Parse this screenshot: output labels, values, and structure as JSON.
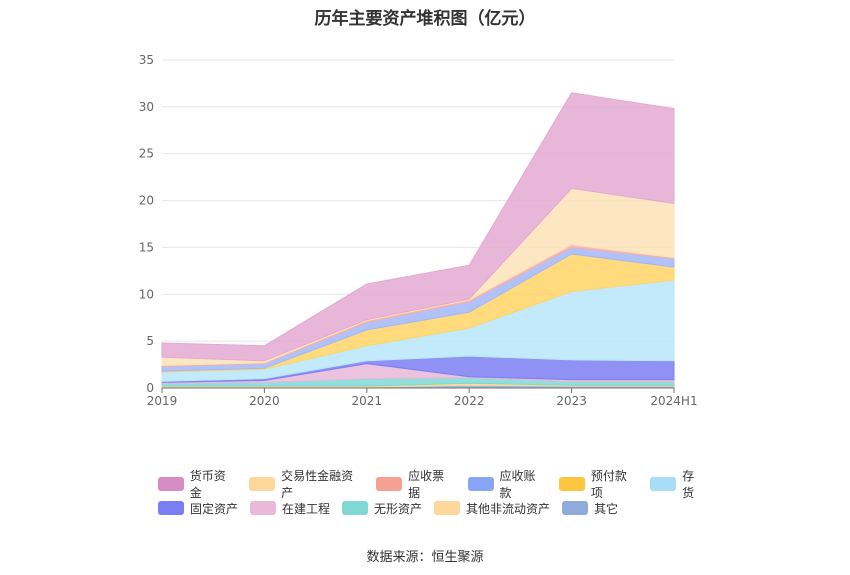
{
  "title": "历年主要资产堆积图（亿元）",
  "source": "数据来源：恒生聚源",
  "chart_data": {
    "type": "area",
    "stacked": true,
    "categories": [
      "2019",
      "2020",
      "2021",
      "2022",
      "2023",
      "2024H1"
    ],
    "ylim": [
      0,
      35
    ],
    "yticks": [
      0,
      5,
      10,
      15,
      20,
      25,
      30,
      35
    ],
    "grid": true,
    "legend_position": "bottom",
    "series": [
      {
        "name": "其它",
        "color": "#8faadc",
        "values": [
          0.1,
          0.1,
          0.1,
          0.3,
          0.2,
          0.2
        ]
      },
      {
        "name": "其他非流动资产",
        "color": "#ffd98f",
        "values": [
          0.1,
          0.1,
          0.1,
          0.2,
          0.1,
          0.1
        ]
      },
      {
        "name": "无形资产",
        "color": "#7fd8d4",
        "values": [
          0.3,
          0.4,
          0.8,
          0.6,
          0.4,
          0.4
        ]
      },
      {
        "name": "在建工程",
        "color": "#e8b9d9",
        "values": [
          0.1,
          0.2,
          1.6,
          0.1,
          0.2,
          0.2
        ]
      },
      {
        "name": "固定资产",
        "color": "#7b7ef2",
        "values": [
          0.1,
          0.2,
          0.3,
          2.2,
          2.1,
          2.0
        ]
      },
      {
        "name": "存货",
        "color": "#b8e6fa",
        "values": [
          1.0,
          1.0,
          1.6,
          3.0,
          7.3,
          8.6
        ]
      },
      {
        "name": "预付款项",
        "color": "#ffd566",
        "values": [
          0.1,
          0.1,
          1.7,
          1.7,
          4.0,
          1.4
        ]
      },
      {
        "name": "应收账款",
        "color": "#a3b7fa",
        "values": [
          0.5,
          0.5,
          0.8,
          1.1,
          0.7,
          0.9
        ]
      },
      {
        "name": "应收票据",
        "color": "#f6b0a6",
        "values": [
          0.1,
          0.1,
          0.2,
          0.2,
          0.3,
          0.1
        ]
      },
      {
        "name": "交易性金融资产",
        "color": "#fde3b8",
        "values": [
          0.9,
          0.2,
          0.1,
          0.1,
          6.0,
          5.8
        ]
      },
      {
        "name": "货币资金",
        "color": "#e4a9d2",
        "values": [
          1.5,
          1.6,
          3.8,
          3.6,
          10.2,
          10.1
        ]
      }
    ]
  },
  "legend": {
    "row1": [
      {
        "label": "货币资金",
        "color": "#d58cc2"
      },
      {
        "label": "交易性金融资产",
        "color": "#fdd89a"
      },
      {
        "label": "应收票据",
        "color": "#f4a093"
      },
      {
        "label": "应收账款",
        "color": "#8aa4f6"
      },
      {
        "label": "预付款项",
        "color": "#fdc540"
      },
      {
        "label": "存货",
        "color": "#a8ddf7"
      }
    ],
    "row2": [
      {
        "label": "固定资产",
        "color": "#7b7ef2"
      },
      {
        "label": "在建工程",
        "color": "#e8b9d9"
      },
      {
        "label": "无形资产",
        "color": "#7fd8d4"
      },
      {
        "label": "其他非流动资产",
        "color": "#fdd89a"
      },
      {
        "label": "其它",
        "color": "#8faadc"
      }
    ]
  }
}
